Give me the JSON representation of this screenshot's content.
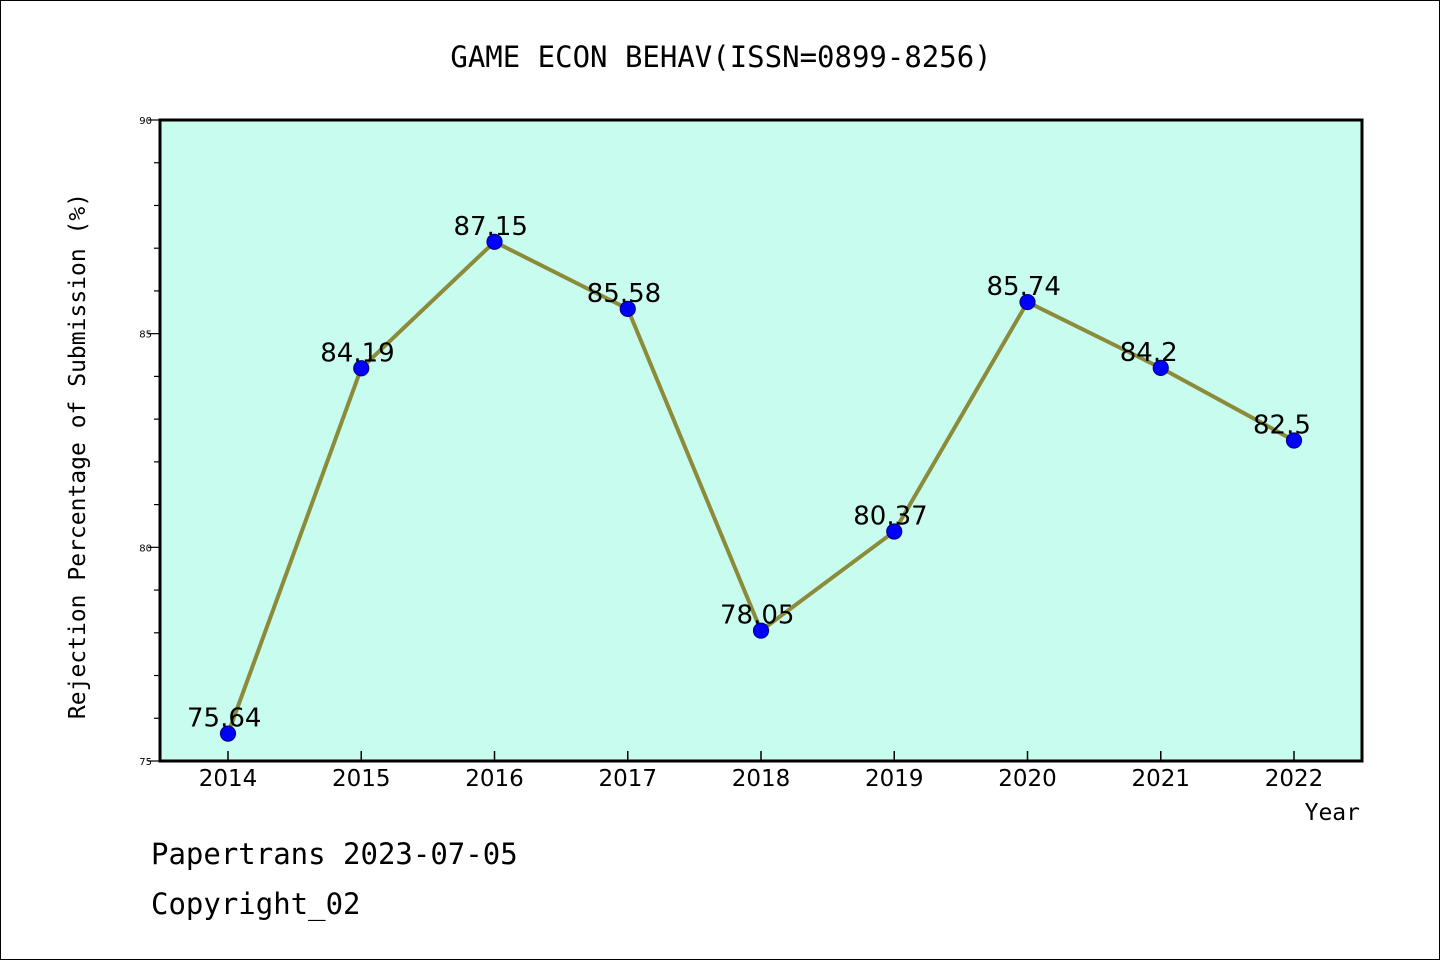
{
  "chart_data": {
    "type": "line",
    "title": "GAME ECON BEHAV(ISSN=0899-8256)",
    "xlabel": "Year",
    "ylabel": "Rejection Percentage of Submission (%)",
    "categories": [
      "2014",
      "2015",
      "2016",
      "2017",
      "2018",
      "2019",
      "2020",
      "2021",
      "2022"
    ],
    "values": [
      75.64,
      84.19,
      87.15,
      85.58,
      78.05,
      80.37,
      85.74,
      84.2,
      82.5
    ],
    "data_labels": [
      "75.64",
      "84.19",
      "87.15",
      "85.58",
      "78.05",
      "80.37",
      "85.74",
      "84.2",
      "82.5"
    ],
    "ylim": [
      75,
      90
    ],
    "yticks": [
      75,
      80,
      85,
      90
    ],
    "ytick_labels": [
      "75",
      "80",
      "85",
      "90"
    ],
    "y_minor_step": 1,
    "grid": false,
    "colors": {
      "plot_background": "#c8fcee",
      "line": "#8b8b3a",
      "marker_fill": "#0000ff",
      "marker_edge": "#00008b"
    }
  },
  "footer": {
    "line1": "Papertrans 2023-07-05",
    "line2": "Copyright_02"
  }
}
